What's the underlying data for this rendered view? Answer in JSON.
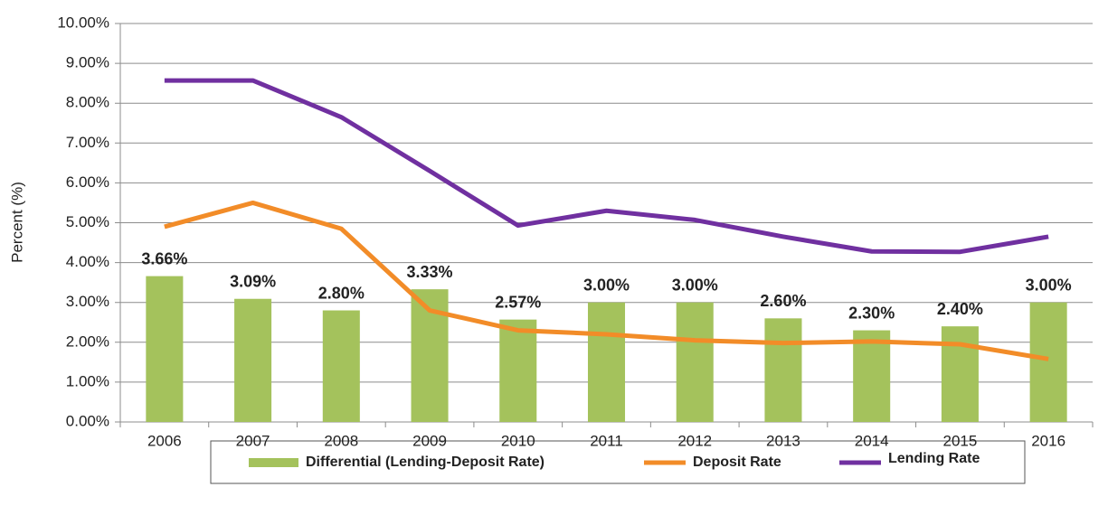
{
  "chart_data": {
    "type": "bar",
    "y_label": "Percent (%)",
    "categories": [
      "2006",
      "2007",
      "2008",
      "2009",
      "2010",
      "2011",
      "2012",
      "2013",
      "2014",
      "2015",
      "2016"
    ],
    "series": [
      {
        "name": "Differential (Lending-Deposit Rate)",
        "type": "bar",
        "color": "#a4c25c",
        "values": [
          3.66,
          3.09,
          2.8,
          3.33,
          2.57,
          3.0,
          3.0,
          2.6,
          2.3,
          2.4,
          3.0
        ],
        "value_labels": [
          "3.66%",
          "3.09%",
          "2.80%",
          "3.33%",
          "2.57%",
          "3.00%",
          "3.00%",
          "2.60%",
          "2.30%",
          "2.40%",
          "3.00%"
        ]
      },
      {
        "name": "Deposit Rate",
        "type": "line",
        "color": "#f28c28",
        "values": [
          4.9,
          5.5,
          4.85,
          2.8,
          2.3,
          2.2,
          2.05,
          1.98,
          2.02,
          1.95,
          1.58
        ]
      },
      {
        "name": "Lending Rate",
        "type": "line",
        "color": "#7030a0",
        "values": [
          8.57,
          8.57,
          7.65,
          6.3,
          4.93,
          5.3,
          5.07,
          4.65,
          4.28,
          4.27,
          4.65
        ]
      }
    ],
    "ylim": [
      0,
      10
    ],
    "yticks": [
      {
        "value": 0,
        "label": "0.00%"
      },
      {
        "value": 1,
        "label": "1.00%"
      },
      {
        "value": 2,
        "label": "2.00%"
      },
      {
        "value": 3,
        "label": "3.00%"
      },
      {
        "value": 4,
        "label": "4.00%"
      },
      {
        "value": 5,
        "label": "5.00%"
      },
      {
        "value": 6,
        "label": "6.00%"
      },
      {
        "value": 7,
        "label": "7.00%"
      },
      {
        "value": 8,
        "label": "8.00%"
      },
      {
        "value": 9,
        "label": "9.00%"
      },
      {
        "value": 10,
        "label": "10.00%"
      }
    ],
    "grid": true,
    "legend": "bottom"
  }
}
